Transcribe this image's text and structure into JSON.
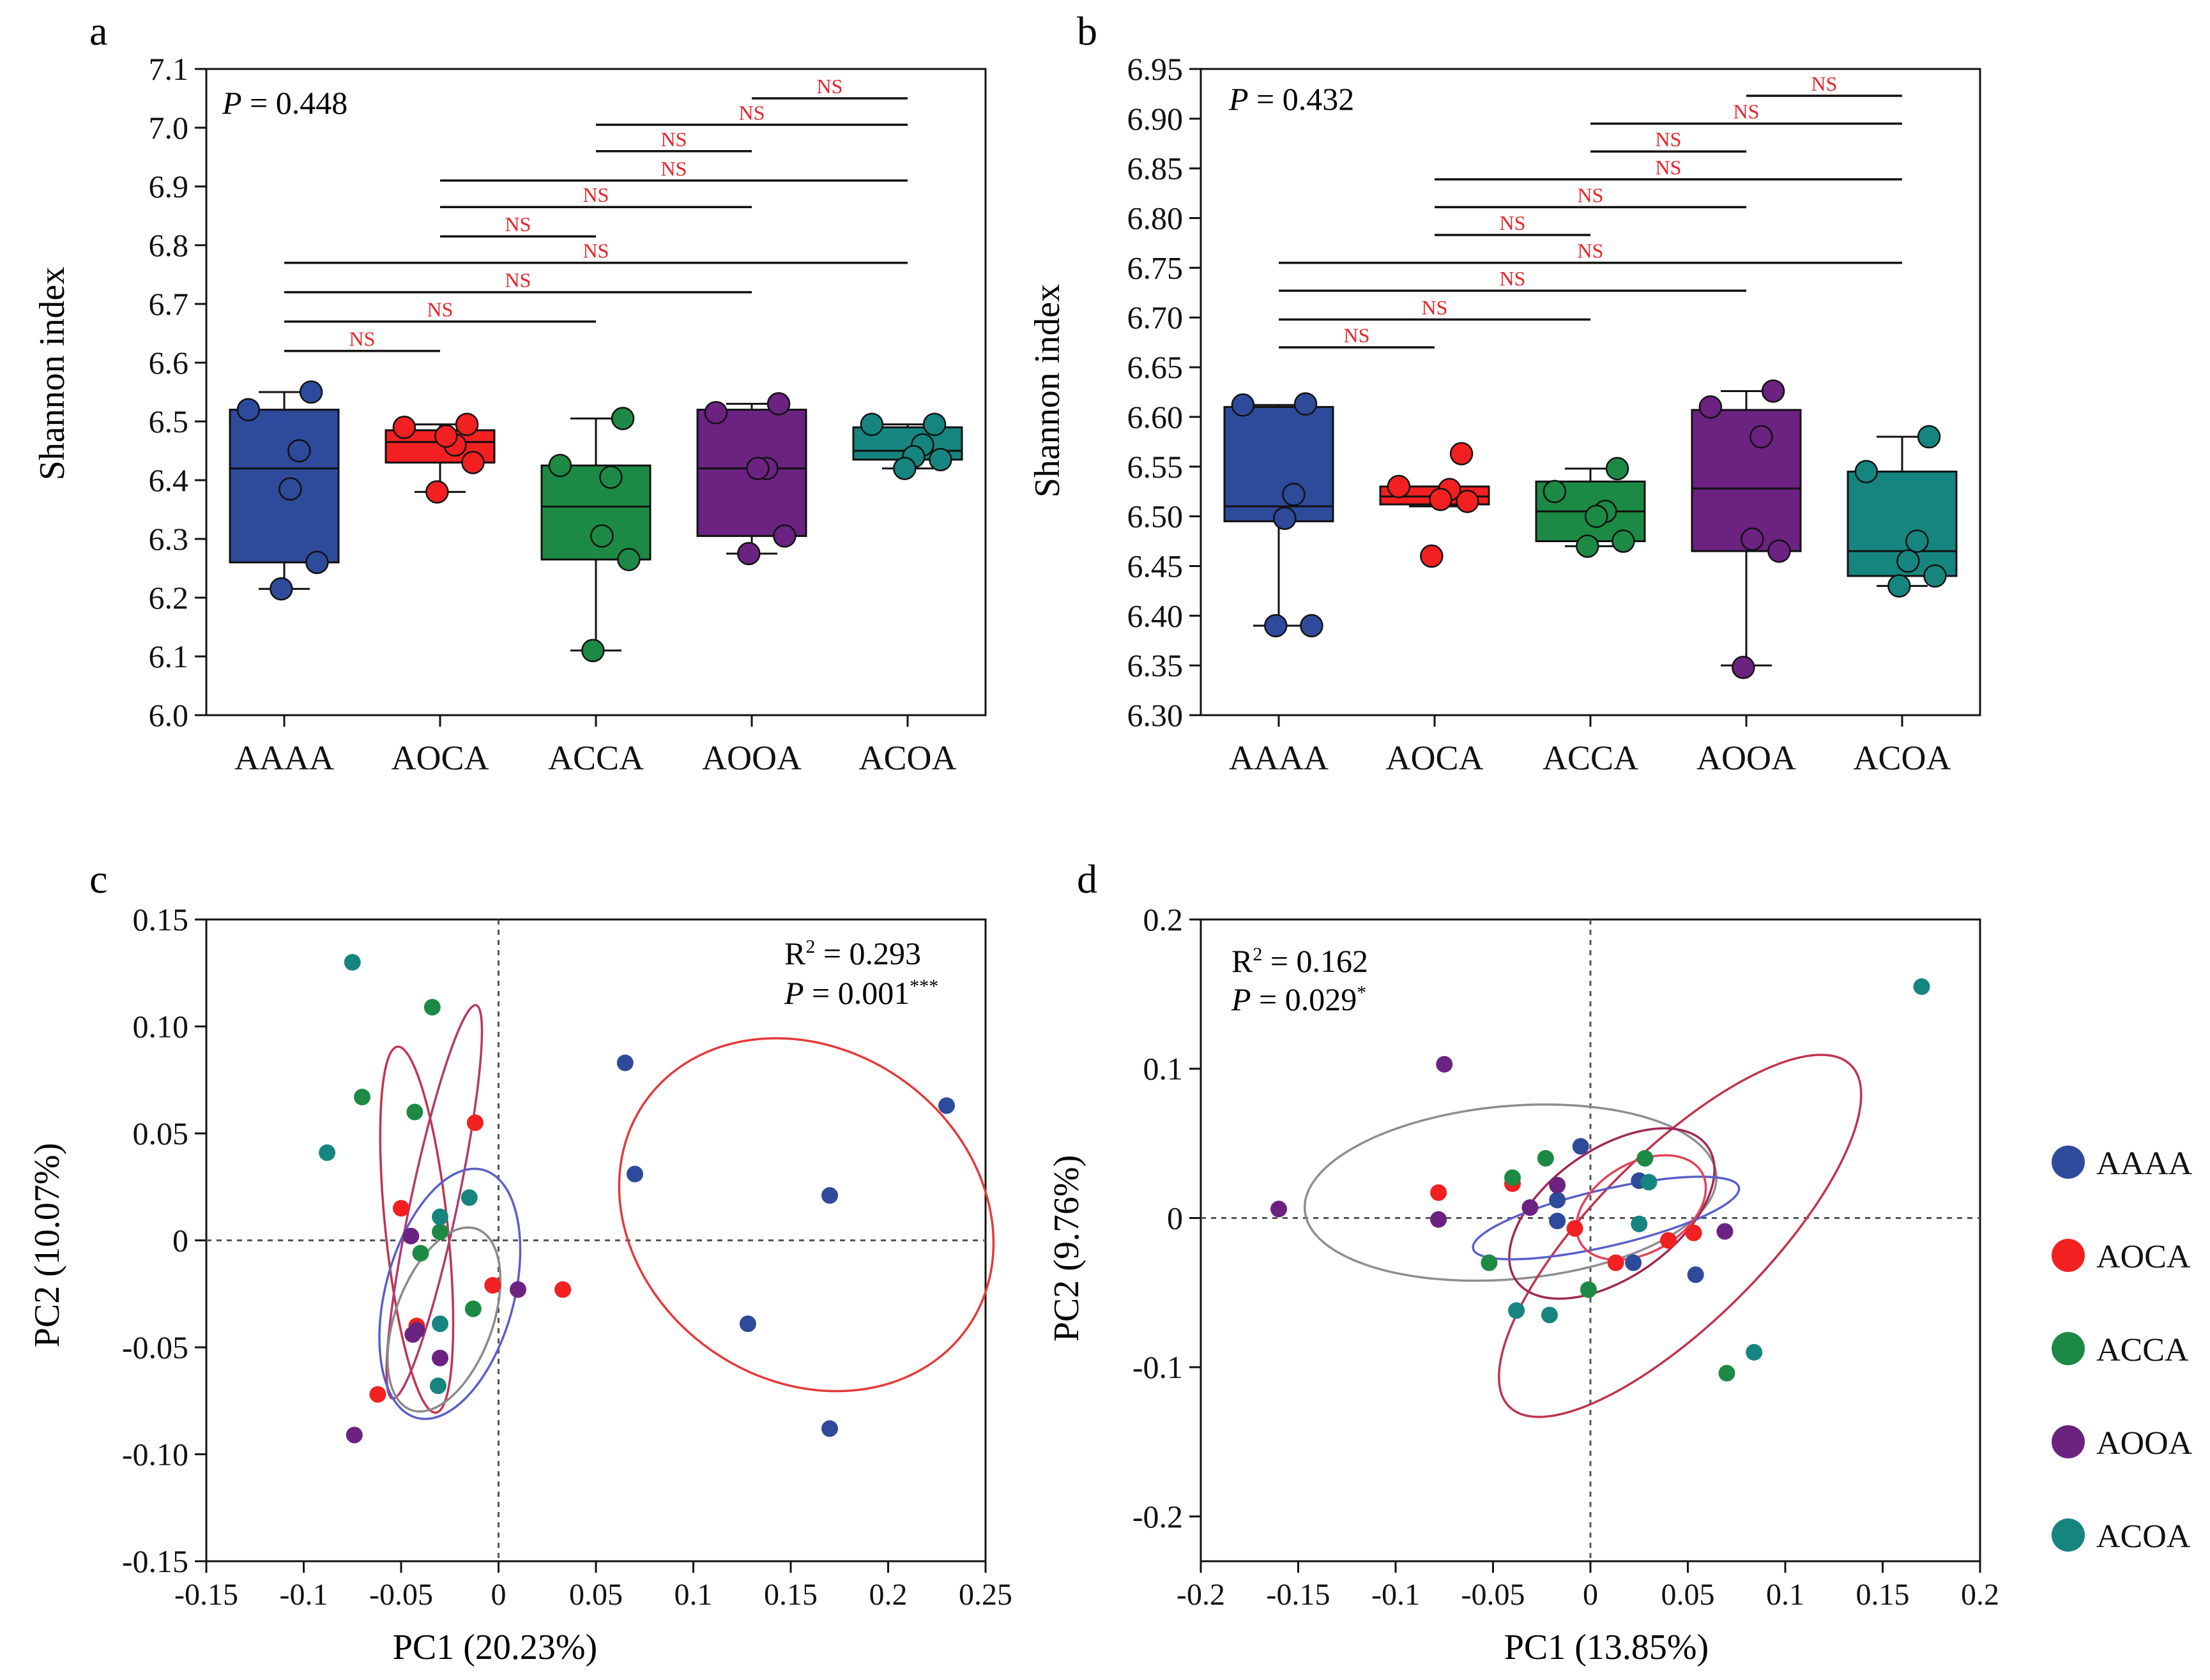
{
  "chart_data": [
    {
      "panel_label": "a",
      "type": "box",
      "ylabel": "Shannon index",
      "ylim": [
        6.0,
        7.1
      ],
      "yticks": [
        "6.0",
        "6.1",
        "6.2",
        "6.3",
        "6.4",
        "6.5",
        "6.6",
        "6.7",
        "6.8",
        "6.9",
        "7.0",
        "7.1"
      ],
      "categories": [
        "AAAA",
        "AOCA",
        "ACCA",
        "AOOA",
        "ACOA"
      ],
      "colors": [
        "#2E4A9A",
        "#F22020",
        "#1C8A44",
        "#6B2281",
        "#16857F"
      ],
      "p_label": "P",
      "p_value": " = 0.448",
      "boxes": [
        {
          "name": "AAAA",
          "min": 6.215,
          "q1": 6.26,
          "median": 6.42,
          "q3": 6.52,
          "max": 6.55,
          "points": [
            6.55,
            6.52,
            6.45,
            6.385,
            6.26,
            6.215
          ]
        },
        {
          "name": "AOCA",
          "min": 6.38,
          "q1": 6.43,
          "median": 6.465,
          "q3": 6.485,
          "max": 6.495,
          "points": [
            6.495,
            6.49,
            6.46,
            6.475,
            6.43,
            6.38
          ]
        },
        {
          "name": "ACCA",
          "min": 6.11,
          "q1": 6.265,
          "median": 6.355,
          "q3": 6.425,
          "max": 6.505,
          "points": [
            6.505,
            6.425,
            6.405,
            6.305,
            6.265,
            6.11
          ]
        },
        {
          "name": "AOOA",
          "min": 6.275,
          "q1": 6.305,
          "median": 6.42,
          "q3": 6.52,
          "max": 6.53,
          "points": [
            6.53,
            6.515,
            6.42,
            6.42,
            6.305,
            6.275
          ]
        },
        {
          "name": "ACOA",
          "min": 6.42,
          "q1": 6.435,
          "median": 6.45,
          "q3": 6.49,
          "max": 6.495,
          "points": [
            6.495,
            6.495,
            6.46,
            6.44,
            6.435,
            6.42
          ]
        }
      ],
      "comparisons": [
        {
          "from": 0,
          "to": 1,
          "y": 6.62,
          "label": "NS"
        },
        {
          "from": 0,
          "to": 2,
          "y": 6.67,
          "label": "NS"
        },
        {
          "from": 0,
          "to": 3,
          "y": 6.72,
          "label": "NS"
        },
        {
          "from": 0,
          "to": 4,
          "y": 6.77,
          "label": "NS"
        },
        {
          "from": 1,
          "to": 2,
          "y": 6.815,
          "label": "NS"
        },
        {
          "from": 1,
          "to": 3,
          "y": 6.865,
          "label": "NS"
        },
        {
          "from": 1,
          "to": 4,
          "y": 6.91,
          "label": "NS"
        },
        {
          "from": 2,
          "to": 3,
          "y": 6.96,
          "label": "NS"
        },
        {
          "from": 2,
          "to": 4,
          "y": 7.005,
          "label": "NS"
        },
        {
          "from": 3,
          "to": 4,
          "y": 7.05,
          "label": "NS"
        }
      ]
    },
    {
      "panel_label": "b",
      "type": "box",
      "ylabel": "Shannon index",
      "ylim": [
        6.3,
        6.95
      ],
      "yticks": [
        "6.30",
        "6.35",
        "6.40",
        "6.45",
        "6.50",
        "6.55",
        "6.60",
        "6.65",
        "6.70",
        "6.75",
        "6.80",
        "6.85",
        "6.90",
        "6.95"
      ],
      "categories": [
        "AAAA",
        "AOCA",
        "ACCA",
        "AOOA",
        "ACOA"
      ],
      "colors": [
        "#2E4A9A",
        "#F22020",
        "#1C8A44",
        "#6B2281",
        "#16857F"
      ],
      "p_label": "P",
      "p_value": " = 0.432",
      "boxes": [
        {
          "name": "AAAA",
          "min": 6.39,
          "q1": 6.495,
          "median": 6.51,
          "q3": 6.61,
          "max": 6.612,
          "points": [
            6.613,
            6.612,
            6.522,
            6.498,
            6.39,
            6.39
          ]
        },
        {
          "name": "AOCA",
          "min": 6.51,
          "q1": 6.512,
          "median": 6.52,
          "q3": 6.53,
          "max": 6.53,
          "points": [
            6.563,
            6.53,
            6.527,
            6.517,
            6.515,
            6.46
          ]
        },
        {
          "name": "ACCA",
          "min": 6.47,
          "q1": 6.475,
          "median": 6.505,
          "q3": 6.535,
          "max": 6.548,
          "points": [
            6.548,
            6.525,
            6.505,
            6.5,
            6.475,
            6.47
          ]
        },
        {
          "name": "AOOA",
          "min": 6.35,
          "q1": 6.465,
          "median": 6.528,
          "q3": 6.607,
          "max": 6.626,
          "points": [
            6.626,
            6.61,
            6.58,
            6.477,
            6.465,
            6.348
          ]
        },
        {
          "name": "ACOA",
          "min": 6.43,
          "q1": 6.44,
          "median": 6.465,
          "q3": 6.545,
          "max": 6.58,
          "points": [
            6.58,
            6.545,
            6.475,
            6.455,
            6.44,
            6.43
          ]
        }
      ],
      "comparisons": [
        {
          "from": 0,
          "to": 1,
          "y": 6.67,
          "label": "NS"
        },
        {
          "from": 0,
          "to": 2,
          "y": 6.698,
          "label": "NS"
        },
        {
          "from": 0,
          "to": 3,
          "y": 6.727,
          "label": "NS"
        },
        {
          "from": 0,
          "to": 4,
          "y": 6.755,
          "label": "NS"
        },
        {
          "from": 1,
          "to": 2,
          "y": 6.783,
          "label": "NS"
        },
        {
          "from": 1,
          "to": 3,
          "y": 6.811,
          "label": "NS"
        },
        {
          "from": 1,
          "to": 4,
          "y": 6.839,
          "label": "NS"
        },
        {
          "from": 2,
          "to": 3,
          "y": 6.867,
          "label": "NS"
        },
        {
          "from": 2,
          "to": 4,
          "y": 6.895,
          "label": "NS"
        },
        {
          "from": 3,
          "to": 4,
          "y": 6.923,
          "label": "NS"
        }
      ]
    },
    {
      "panel_label": "c",
      "type": "scatter",
      "xlabel": "PC1 (20.23%)",
      "ylabel": "PC2 (10.07%)",
      "xlim": [
        -0.15,
        0.25
      ],
      "ylim": [
        -0.15,
        0.15
      ],
      "xticks": [
        "-0.15",
        "-0.1",
        "-0.05",
        "0",
        "0.05",
        "0.1",
        "0.15",
        "0.2",
        "0.25"
      ],
      "yticks": [
        "-0.15",
        "-0.10",
        "-0.05",
        "0",
        "0.05",
        "0.10",
        "0.15"
      ],
      "stat_line1_label": "R",
      "stat_line1_sup": "2",
      "stat_line1_value": " = 0.293",
      "stat_line2_label": "P",
      "stat_line2_value": " = 0.001",
      "stat_line2_sup": "***",
      "series": [
        {
          "name": "AAAA",
          "color": "#2E4A9A",
          "points": [
            [
              0.065,
              0.083
            ],
            [
              0.07,
              0.031
            ],
            [
              0.128,
              -0.039
            ],
            [
              0.17,
              0.021
            ],
            [
              0.17,
              -0.088
            ],
            [
              0.23,
              0.063
            ]
          ]
        },
        {
          "name": "AOCA",
          "color": "#F22020",
          "points": [
            [
              -0.05,
              0.015
            ],
            [
              -0.042,
              -0.04
            ],
            [
              -0.012,
              0.055
            ],
            [
              -0.003,
              -0.021
            ],
            [
              0.033,
              -0.023
            ],
            [
              -0.062,
              -0.072
            ]
          ]
        },
        {
          "name": "ACCA",
          "color": "#1C8A44",
          "points": [
            [
              -0.034,
              0.109
            ],
            [
              -0.07,
              0.067
            ],
            [
              -0.043,
              0.06
            ],
            [
              -0.03,
              0.004
            ],
            [
              -0.04,
              -0.006
            ],
            [
              -0.013,
              -0.032
            ]
          ]
        },
        {
          "name": "AOOA",
          "color": "#6B2281",
          "points": [
            [
              -0.045,
              0.002
            ],
            [
              -0.042,
              -0.042
            ],
            [
              -0.044,
              -0.044
            ],
            [
              -0.03,
              -0.055
            ],
            [
              0.01,
              -0.023
            ],
            [
              -0.074,
              -0.091
            ]
          ]
        },
        {
          "name": "ACOA",
          "color": "#16857F",
          "points": [
            [
              -0.075,
              0.13
            ],
            [
              -0.088,
              0.041
            ],
            [
              -0.015,
              0.02
            ],
            [
              -0.03,
              0.011
            ],
            [
              -0.03,
              -0.039
            ],
            [
              -0.031,
              -0.068
            ]
          ]
        }
      ],
      "ellipses": [
        {
          "group": "AAAA",
          "color": "#E43A3A",
          "cx": 0.158,
          "cy": 0.012,
          "rx": 0.085,
          "ry": 0.092,
          "angle": -55
        },
        {
          "group": "AOCA",
          "color": "#C0344E",
          "cx": -0.042,
          "cy": 0.005,
          "rx": 0.016,
          "ry": 0.086,
          "angle": -6
        },
        {
          "group": "ACCA",
          "color": "#B23A6D",
          "cx": -0.033,
          "cy": 0.018,
          "rx": 0.012,
          "ry": 0.094,
          "angle": 12
        },
        {
          "group": "AOOA",
          "color": "#5A5FC8",
          "cx": -0.025,
          "cy": -0.025,
          "rx": 0.033,
          "ry": 0.06,
          "angle": 15
        },
        {
          "group": "ACOA",
          "color": "#8A8A8A",
          "cx": -0.028,
          "cy": -0.037,
          "rx": 0.025,
          "ry": 0.045,
          "angle": 20
        }
      ]
    },
    {
      "panel_label": "d",
      "type": "scatter",
      "xlabel": "PC1 (13.85%)",
      "ylabel": "PC2 (9.76%)",
      "xlim": [
        -0.2,
        0.2
      ],
      "ylim": [
        -0.23,
        0.2
      ],
      "xticks": [
        "-0.2",
        "-0.15",
        "-0.1",
        "-0.05",
        "0",
        "0.05",
        "0.1",
        "0.15",
        "0.2"
      ],
      "yticks": [
        "-0.2",
        "-0.1",
        "0",
        "0.1",
        "0.2"
      ],
      "stat_line1_label": "R",
      "stat_line1_sup": "2",
      "stat_line1_value": " = 0.162",
      "stat_line2_label": "P",
      "stat_line2_value": " = 0.029",
      "stat_line2_sup": "*",
      "series": [
        {
          "name": "AAAA",
          "color": "#2E4A9A",
          "points": [
            [
              -0.005,
              0.048
            ],
            [
              0.025,
              0.025
            ],
            [
              -0.017,
              0.012
            ],
            [
              -0.017,
              -0.002
            ],
            [
              0.022,
              -0.03
            ],
            [
              0.054,
              -0.038
            ]
          ]
        },
        {
          "name": "AOCA",
          "color": "#F22020",
          "points": [
            [
              -0.078,
              0.017
            ],
            [
              -0.04,
              0.023
            ],
            [
              -0.008,
              -0.007
            ],
            [
              0.013,
              -0.03
            ],
            [
              0.04,
              -0.015
            ],
            [
              0.053,
              -0.01
            ]
          ]
        },
        {
          "name": "ACCA",
          "color": "#1C8A44",
          "points": [
            [
              -0.023,
              0.04
            ],
            [
              -0.04,
              0.027
            ],
            [
              0.028,
              0.04
            ],
            [
              -0.052,
              -0.03
            ],
            [
              -0.001,
              -0.048
            ],
            [
              0.07,
              -0.104
            ]
          ]
        },
        {
          "name": "AOOA",
          "color": "#6B2281",
          "points": [
            [
              -0.075,
              0.103
            ],
            [
              -0.16,
              0.006
            ],
            [
              -0.078,
              -0.001
            ],
            [
              -0.017,
              0.022
            ],
            [
              -0.031,
              0.007
            ],
            [
              0.069,
              -0.009
            ]
          ]
        },
        {
          "name": "ACOA",
          "color": "#16857F",
          "points": [
            [
              0.17,
              0.155
            ],
            [
              0.03,
              0.024
            ],
            [
              0.025,
              -0.004
            ],
            [
              -0.038,
              -0.062
            ],
            [
              -0.021,
              -0.065
            ],
            [
              0.084,
              -0.09
            ]
          ]
        }
      ],
      "ellipses": [
        {
          "group": "AAAA",
          "color": "#8E8E8E",
          "cx": -0.041,
          "cy": 0.017,
          "rx": 0.106,
          "ry": 0.058,
          "angle": -5
        },
        {
          "group": "AOCA",
          "color": "#C0344E",
          "cx": 0.046,
          "cy": -0.012,
          "rx": 0.124,
          "ry": 0.057,
          "angle": -45
        },
        {
          "group": "ACCA",
          "color": "#A02858",
          "cx": 0.011,
          "cy": 0.003,
          "rx": 0.06,
          "ry": 0.043,
          "angle": -35
        },
        {
          "group": "AOOA",
          "color": "#5A5FC8",
          "cx": 0.008,
          "cy": 0.0,
          "rx": 0.07,
          "ry": 0.019,
          "angle": -13
        },
        {
          "group": "ACOA",
          "color": "#E0445A",
          "cx": 0.026,
          "cy": 0.007,
          "rx": 0.036,
          "ry": 0.03,
          "angle": -30
        }
      ],
      "legend": [
        {
          "name": "AAAA",
          "color": "#2E4A9A"
        },
        {
          "name": "AOCA",
          "color": "#F22020"
        },
        {
          "name": "ACCA",
          "color": "#1C8A44"
        },
        {
          "name": "AOOA",
          "color": "#6B2281"
        },
        {
          "name": "ACOA",
          "color": "#16857F"
        }
      ]
    }
  ]
}
